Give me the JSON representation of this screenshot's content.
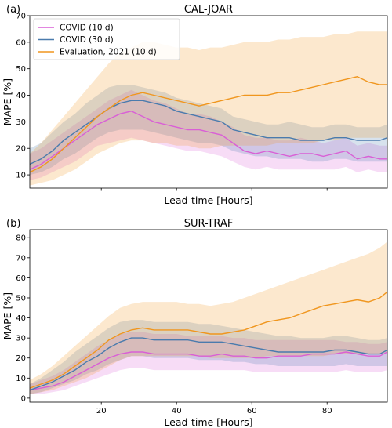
{
  "chart_data": [
    {
      "type": "line",
      "panel_label": "(a)",
      "title": "CAL-JOAR",
      "xlabel": "Lead-time [Hours]",
      "ylabel": "MAPE [%]",
      "xlim": [
        1,
        96
      ],
      "ylim": [
        5,
        70
      ],
      "yticks": [
        10,
        20,
        30,
        40,
        50,
        60,
        70
      ],
      "xticks": [
        20,
        40,
        60,
        80
      ],
      "show_xtick_labels": false,
      "legend": "top-left",
      "series": [
        {
          "name": "COVID (10 d)",
          "color": "#d95fd6",
          "x": [
            1,
            4,
            7,
            10,
            13,
            16,
            19,
            22,
            25,
            28,
            31,
            34,
            37,
            40,
            43,
            46,
            49,
            52,
            55,
            58,
            61,
            64,
            67,
            70,
            73,
            76,
            79,
            82,
            85,
            88,
            91,
            94,
            96
          ],
          "values": [
            12,
            14,
            17,
            20,
            23,
            26,
            29,
            31,
            33,
            34,
            32,
            30,
            29,
            28,
            27,
            27,
            26,
            25,
            22,
            19,
            18,
            19,
            18,
            17,
            18,
            18,
            17,
            18,
            19,
            16,
            17,
            16,
            16
          ],
          "upper": [
            18,
            20,
            23,
            26,
            29,
            32,
            35,
            38,
            40,
            42,
            40,
            38,
            37,
            35,
            33,
            33,
            32,
            30,
            28,
            25,
            24,
            24,
            23,
            23,
            24,
            23,
            22,
            23,
            24,
            21,
            22,
            21,
            21
          ],
          "lower": [
            8,
            9,
            11,
            13,
            15,
            18,
            21,
            22,
            23,
            24,
            23,
            22,
            21,
            20,
            19,
            19,
            18,
            17,
            15,
            13,
            12,
            13,
            12,
            12,
            12,
            12,
            12,
            12,
            13,
            11,
            12,
            11,
            11
          ]
        },
        {
          "name": "COVID (30 d)",
          "color": "#4a7bad",
          "x": [
            1,
            4,
            7,
            10,
            13,
            16,
            19,
            22,
            25,
            28,
            31,
            34,
            37,
            40,
            43,
            46,
            49,
            52,
            55,
            58,
            61,
            64,
            67,
            70,
            73,
            76,
            79,
            82,
            85,
            88,
            91,
            94,
            96
          ],
          "values": [
            14,
            16,
            19,
            23,
            26,
            29,
            32,
            35,
            37,
            38,
            38,
            37,
            36,
            34,
            33,
            32,
            31,
            30,
            27,
            26,
            25,
            24,
            24,
            24,
            23,
            23,
            23,
            24,
            24,
            23,
            23,
            23,
            24
          ],
          "upper": [
            20,
            22,
            26,
            30,
            33,
            37,
            40,
            43,
            44,
            44,
            43,
            42,
            41,
            39,
            38,
            37,
            36,
            35,
            32,
            31,
            30,
            29,
            29,
            30,
            29,
            28,
            28,
            29,
            29,
            28,
            28,
            28,
            29
          ],
          "lower": [
            10,
            11,
            13,
            16,
            18,
            21,
            24,
            26,
            27,
            27,
            27,
            26,
            25,
            24,
            23,
            22,
            22,
            21,
            19,
            18,
            17,
            17,
            16,
            16,
            16,
            15,
            15,
            16,
            16,
            15,
            15,
            15,
            15
          ]
        },
        {
          "name": "Evaluation, 2021 (10 d)",
          "color": "#f0961e",
          "x": [
            1,
            4,
            7,
            10,
            13,
            16,
            19,
            22,
            25,
            28,
            31,
            34,
            37,
            40,
            43,
            46,
            49,
            52,
            55,
            58,
            61,
            64,
            67,
            70,
            73,
            76,
            79,
            82,
            85,
            88,
            91,
            94,
            96
          ],
          "values": [
            11,
            13,
            16,
            20,
            24,
            28,
            32,
            35,
            38,
            40,
            41,
            40,
            39,
            38,
            37,
            36,
            37,
            38,
            39,
            40,
            40,
            40,
            41,
            41,
            42,
            43,
            44,
            45,
            46,
            47,
            45,
            44,
            44
          ],
          "upper": [
            18,
            22,
            27,
            32,
            37,
            42,
            47,
            52,
            56,
            58,
            60,
            60,
            59,
            58,
            58,
            57,
            58,
            58,
            59,
            60,
            60,
            60,
            61,
            61,
            62,
            62,
            62,
            63,
            63,
            64,
            64,
            64,
            64
          ],
          "lower": [
            6,
            7,
            8,
            10,
            12,
            15,
            18,
            20,
            22,
            23,
            23,
            22,
            22,
            21,
            21,
            20,
            20,
            21,
            21,
            21,
            21,
            21,
            22,
            22,
            22,
            22,
            23,
            23,
            24,
            24,
            24,
            24,
            24
          ]
        }
      ]
    },
    {
      "type": "line",
      "panel_label": "(b)",
      "title": "SUR-TRAF",
      "xlabel": "Lead-time [Hours]",
      "ylabel": "MAPE [%]",
      "xlim": [
        1,
        96
      ],
      "ylim": [
        -2,
        84
      ],
      "yticks": [
        0,
        10,
        20,
        30,
        40,
        50,
        60,
        70,
        80
      ],
      "xticks": [
        20,
        40,
        60,
        80
      ],
      "show_xtick_labels": true,
      "series": [
        {
          "name": "COVID (10 d)",
          "color": "#d95fd6",
          "x": [
            1,
            4,
            7,
            10,
            13,
            16,
            19,
            22,
            25,
            28,
            31,
            34,
            37,
            40,
            43,
            46,
            49,
            52,
            55,
            58,
            61,
            64,
            67,
            70,
            73,
            76,
            79,
            82,
            85,
            88,
            91,
            94,
            96
          ],
          "values": [
            4,
            5,
            6,
            8,
            11,
            14,
            17,
            20,
            22,
            23,
            23,
            22,
            22,
            22,
            22,
            21,
            21,
            22,
            21,
            21,
            20,
            20,
            21,
            21,
            21,
            22,
            22,
            22,
            23,
            22,
            21,
            21,
            23
          ],
          "upper": [
            7,
            9,
            11,
            14,
            18,
            22,
            26,
            29,
            32,
            33,
            33,
            32,
            32,
            32,
            31,
            31,
            31,
            31,
            30,
            30,
            29,
            29,
            29,
            29,
            29,
            29,
            29,
            29,
            28,
            28,
            27,
            27,
            28
          ],
          "lower": [
            2,
            2,
            3,
            4,
            6,
            8,
            10,
            12,
            14,
            15,
            15,
            14,
            14,
            14,
            14,
            14,
            14,
            14,
            14,
            14,
            13,
            13,
            13,
            13,
            13,
            13,
            13,
            13,
            14,
            13,
            13,
            13,
            14
          ]
        },
        {
          "name": "COVID (30 d)",
          "color": "#4a7bad",
          "x": [
            1,
            4,
            7,
            10,
            13,
            16,
            19,
            22,
            25,
            28,
            31,
            34,
            37,
            40,
            43,
            46,
            49,
            52,
            55,
            58,
            61,
            64,
            67,
            70,
            73,
            76,
            79,
            82,
            85,
            88,
            91,
            94,
            96
          ],
          "values": [
            4,
            6,
            8,
            11,
            14,
            18,
            21,
            25,
            28,
            30,
            30,
            29,
            29,
            29,
            29,
            28,
            28,
            28,
            27,
            26,
            25,
            24,
            23,
            23,
            23,
            23,
            23,
            24,
            24,
            23,
            22,
            22,
            24
          ],
          "upper": [
            7,
            10,
            14,
            18,
            23,
            27,
            31,
            35,
            38,
            39,
            39,
            38,
            38,
            38,
            38,
            37,
            37,
            36,
            35,
            34,
            33,
            32,
            31,
            31,
            30,
            30,
            30,
            31,
            31,
            30,
            29,
            29,
            30
          ],
          "lower": [
            2,
            3,
            5,
            7,
            9,
            12,
            14,
            17,
            19,
            21,
            21,
            20,
            20,
            20,
            20,
            19,
            19,
            19,
            18,
            18,
            17,
            17,
            16,
            16,
            16,
            16,
            16,
            16,
            17,
            16,
            16,
            16,
            16
          ]
        },
        {
          "name": "Evaluation, 2021 (10 d)",
          "color": "#f0961e",
          "x": [
            1,
            4,
            7,
            10,
            13,
            16,
            19,
            22,
            25,
            28,
            31,
            34,
            37,
            40,
            43,
            46,
            49,
            52,
            55,
            58,
            61,
            64,
            67,
            70,
            73,
            76,
            79,
            82,
            85,
            88,
            91,
            94,
            96
          ],
          "values": [
            5,
            7,
            9,
            12,
            16,
            20,
            24,
            29,
            32,
            34,
            35,
            34,
            34,
            34,
            34,
            33,
            32,
            32,
            33,
            34,
            36,
            38,
            39,
            40,
            42,
            44,
            46,
            47,
            48,
            49,
            48,
            50,
            53
          ],
          "upper": [
            9,
            12,
            16,
            21,
            26,
            31,
            36,
            41,
            45,
            47,
            48,
            48,
            48,
            48,
            47,
            47,
            46,
            47,
            48,
            50,
            52,
            54,
            56,
            58,
            60,
            62,
            64,
            66,
            68,
            70,
            72,
            75,
            78
          ],
          "lower": [
            2,
            3,
            4,
            6,
            8,
            10,
            13,
            16,
            19,
            21,
            21,
            21,
            21,
            21,
            21,
            21,
            20,
            20,
            20,
            20,
            20,
            21,
            21,
            21,
            21,
            21,
            21,
            22,
            22,
            22,
            22,
            22,
            23
          ]
        }
      ]
    }
  ]
}
